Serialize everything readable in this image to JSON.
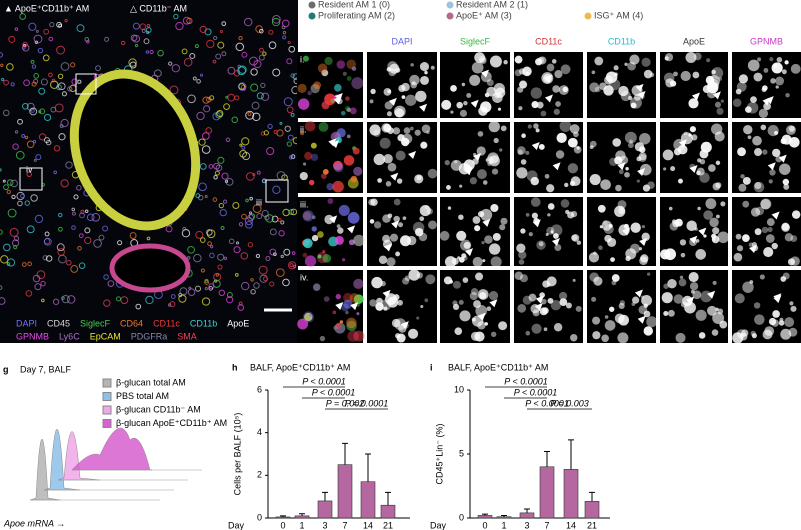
{
  "figure": {
    "overview": {
      "legend": [
        "▲ ApoE⁺CD11b⁺ AM",
        "△ CD11b⁻ AM"
      ],
      "insets": [
        "iv",
        "iii"
      ],
      "channels": [
        [
          {
            "name": "DAPI",
            "color": "#7274f4"
          },
          {
            "name": "CD45",
            "color": "#d8d8d8"
          },
          {
            "name": "SiglecF",
            "color": "#46d04e"
          },
          {
            "name": "CD64",
            "color": "#f07a2a"
          },
          {
            "name": "CD11c",
            "color": "#f03a3a"
          },
          {
            "name": "CD11b",
            "color": "#38d6d6"
          },
          {
            "name": "ApoE",
            "color": "#ffffff"
          }
        ],
        [
          {
            "name": "GPNMB",
            "color": "#e848e8"
          },
          {
            "name": "Ly6C",
            "color": "#b070c8"
          },
          {
            "name": "EpCAM",
            "color": "#e8e82a"
          },
          {
            "name": "PDGFRa",
            "color": "#8888a8"
          },
          {
            "name": "SMA",
            "color": "#f04058"
          }
        ]
      ]
    },
    "clusters": [
      {
        "name": "Resident AM 1 (0)",
        "color": "#6b6b6b"
      },
      {
        "name": "Resident AM 2 (1)",
        "color": "#9cc4e0"
      },
      {
        "name": "Proliferating AM (2)",
        "color": "#1f7a78"
      },
      {
        "name": "ApoE⁺ AM (3)",
        "color": "#b06a8a"
      },
      {
        "name": "ISG⁺ AM (4)",
        "color": "#f0b850"
      }
    ],
    "columns": [
      {
        "name": "DAPI",
        "color": "#5b5ee8"
      },
      {
        "name": "SiglecF",
        "color": "#3cb43c"
      },
      {
        "name": "CD11c",
        "color": "#d83030"
      },
      {
        "name": "CD11b",
        "color": "#2ab8c8"
      },
      {
        "name": "ApoE",
        "color": "#333333"
      },
      {
        "name": "GPNMB",
        "color": "#c83cc8"
      }
    ],
    "rows": [
      "i.",
      "ii.",
      "iii.",
      "iv."
    ],
    "panel_g": {
      "label": "g",
      "title": "Day 7, BALF",
      "xlabel": "Apoe mRNA →",
      "series": [
        {
          "name": "β-glucan total AM",
          "color": "#b4b4b4"
        },
        {
          "name": "PBS total AM",
          "color": "#8ec0e8"
        },
        {
          "name": "β-glucan CD11b⁻ AM",
          "color": "#f0a8e8"
        },
        {
          "name": "β-glucan ApoE⁺CD11b⁺ AM",
          "color": "#d860d0"
        }
      ]
    }
  },
  "chart_data": [
    {
      "type": "bar",
      "label": "h",
      "title": "BALF, ApoE⁺CD11b⁺ AM",
      "ylabel": "Cells per BALF (10⁵)",
      "xlabel": "Day",
      "categories": [
        "0",
        "1",
        "3",
        "7",
        "14",
        "21"
      ],
      "values": [
        0.05,
        0.1,
        0.8,
        2.5,
        1.7,
        0.6
      ],
      "errors": [
        0.05,
        0.1,
        0.4,
        1.0,
        1.3,
        0.6
      ],
      "color": "#b5679f",
      "ylim": [
        0,
        6
      ],
      "yticks": [
        0,
        2,
        4,
        6
      ],
      "annotations": [
        "P < 0.0001",
        "P < 0.0001",
        "P = 0.002",
        "P = 0.0001"
      ]
    },
    {
      "type": "bar",
      "label": "i",
      "title": "BALF, ApoE⁺CD11b⁺ AM",
      "ylabel": "CD45⁺Lin⁻ (%)",
      "xlabel": "Day",
      "categories": [
        "0",
        "1",
        "3",
        "7",
        "14",
        "21"
      ],
      "values": [
        0.2,
        0.1,
        0.4,
        4,
        3.8,
        1.3
      ],
      "errors": [
        0.1,
        0.1,
        0.3,
        1.2,
        2.3,
        0.7
      ],
      "color": "#b5679f",
      "ylim": [
        0,
        10
      ],
      "yticks": [
        0,
        5,
        10
      ],
      "annotations": [
        "P < 0.0001",
        "P < 0.0001",
        "P < 0.0001",
        "P = 0.003"
      ]
    }
  ]
}
